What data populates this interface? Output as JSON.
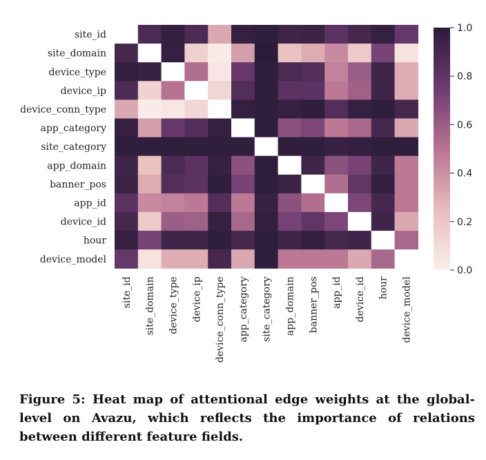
{
  "chart_data": {
    "type": "heatmap",
    "title": "",
    "xlabel": "",
    "ylabel": "",
    "labels": [
      "site_id",
      "site_domain",
      "device_type",
      "device_ip",
      "device_conn_type",
      "app_category",
      "site_category",
      "app_domain",
      "banner_pos",
      "app_id",
      "device_id",
      "hour",
      "device_model"
    ],
    "values": [
      [
        0.0,
        0.88,
        0.97,
        0.88,
        0.32,
        0.96,
        0.98,
        0.93,
        0.94,
        0.82,
        0.9,
        0.96,
        0.78
      ],
      [
        0.9,
        0.0,
        0.96,
        0.15,
        0.02,
        0.35,
        1.0,
        0.22,
        0.3,
        0.42,
        0.18,
        0.72,
        0.06
      ],
      [
        0.97,
        0.95,
        0.0,
        0.52,
        0.04,
        0.78,
        0.98,
        0.88,
        0.85,
        0.45,
        0.6,
        0.92,
        0.3
      ],
      [
        0.88,
        0.14,
        0.5,
        0.0,
        0.12,
        0.85,
        0.98,
        0.82,
        0.82,
        0.48,
        0.58,
        0.92,
        0.3
      ],
      [
        0.32,
        0.01,
        0.04,
        0.12,
        0.0,
        0.96,
        0.98,
        0.96,
        0.98,
        0.85,
        0.96,
        0.98,
        0.9
      ],
      [
        0.96,
        0.35,
        0.78,
        0.85,
        0.96,
        0.0,
        0.98,
        0.65,
        0.7,
        0.48,
        0.55,
        0.9,
        0.32
      ],
      [
        0.98,
        0.98,
        0.98,
        0.98,
        0.98,
        0.98,
        0.0,
        0.98,
        0.98,
        0.95,
        0.97,
        0.98,
        0.98
      ],
      [
        0.93,
        0.22,
        0.88,
        0.82,
        0.96,
        0.65,
        0.98,
        0.0,
        0.92,
        0.65,
        0.72,
        0.92,
        0.48
      ],
      [
        0.94,
        0.3,
        0.85,
        0.82,
        0.98,
        0.72,
        0.98,
        0.94,
        0.0,
        0.52,
        0.8,
        0.97,
        0.48
      ],
      [
        0.82,
        0.42,
        0.45,
        0.48,
        0.85,
        0.48,
        0.95,
        0.65,
        0.52,
        0.0,
        0.7,
        0.9,
        0.48
      ],
      [
        0.9,
        0.18,
        0.6,
        0.58,
        0.96,
        0.55,
        0.97,
        0.72,
        0.8,
        0.7,
        0.0,
        0.92,
        0.32
      ],
      [
        0.96,
        0.72,
        0.92,
        0.92,
        0.98,
        0.9,
        0.98,
        0.92,
        0.97,
        0.9,
        0.92,
        0.0,
        0.55
      ],
      [
        0.78,
        0.06,
        0.3,
        0.3,
        0.9,
        0.32,
        0.98,
        0.48,
        0.48,
        0.48,
        0.32,
        0.55,
        0.0
      ]
    ],
    "colorbar": {
      "min": 0.0,
      "max": 1.0,
      "ticks": [
        "0.0",
        "0.2",
        "0.4",
        "0.6",
        "0.8",
        "1.0"
      ]
    },
    "colormap": [
      "#faeeea",
      "#e8bcbc",
      "#b77393",
      "#6e3b71",
      "#2b1b39"
    ]
  },
  "caption": "Figure 5: Heat map of attentional edge weights at the global-level on Avazu, which reflects the importance of relations between different feature fields."
}
